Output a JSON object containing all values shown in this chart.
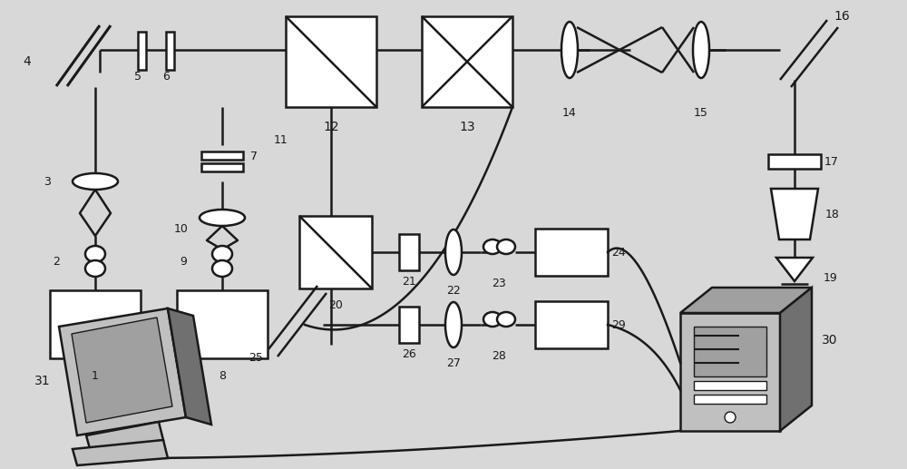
{
  "bg_color": "#d8d8d8",
  "line_color": "#1a1a1a",
  "white": "#ffffff",
  "light_gray": "#c0c0c0",
  "mid_gray": "#a0a0a0",
  "dark_gray": "#707070",
  "figsize": [
    10.0,
    5.17
  ],
  "dpi": 100
}
